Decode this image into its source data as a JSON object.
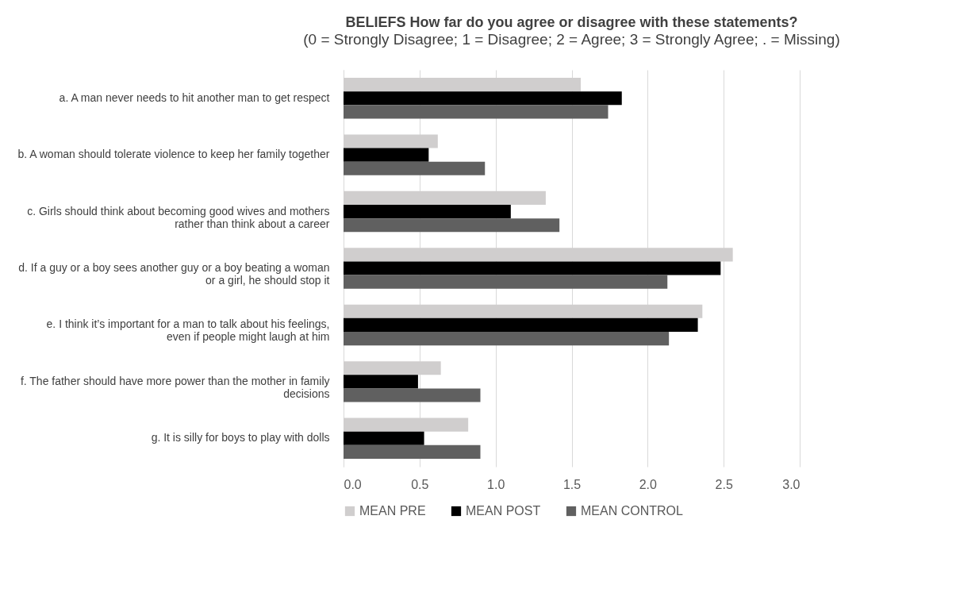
{
  "chart_data": {
    "type": "bar",
    "orientation": "horizontal",
    "title": "BELIEFS How far do you agree or disagree with these statements?",
    "subtitle": "(0 = Strongly Disagree; 1 = Disagree; 2 = Agree; 3 = Strongly Agree; . = Missing)",
    "categories": [
      "a. A man never needs to hit another man to get respect",
      "b. A woman should tolerate violence to keep her family together",
      "c. Girls should think about becoming good wives and mothers rather than think about a career",
      "d. If a guy or a boy sees another guy or a boy beating a woman or a girl, he should stop it",
      "e. I think it’s important for a man to talk about his feelings, even if people might laugh at him",
      "f. The father should have more power than the mother in family decisions",
      "g. It is silly for boys to play with dolls"
    ],
    "series": [
      {
        "name": "MEAN PRE",
        "color": "#d0cece",
        "values": [
          1.56,
          0.62,
          1.33,
          2.56,
          2.36,
          0.64,
          0.82
        ]
      },
      {
        "name": "MEAN POST",
        "color": "#000000",
        "values": [
          1.83,
          0.56,
          1.1,
          2.48,
          2.33,
          0.49,
          0.53
        ]
      },
      {
        "name": "MEAN CONTROL",
        "color": "#606060",
        "values": [
          1.74,
          0.93,
          1.42,
          2.13,
          2.14,
          0.9,
          0.9
        ]
      }
    ],
    "xlim": [
      0,
      3
    ],
    "xticks": [
      {
        "value": 0,
        "label": "0.0"
      },
      0.5,
      {
        "value": 1,
        "label": "1.0"
      },
      1.5,
      {
        "value": 2,
        "label": "2.0"
      },
      2.5,
      {
        "value": 3,
        "label": "3.0"
      }
    ],
    "grid": "x",
    "legend": "bottom"
  }
}
